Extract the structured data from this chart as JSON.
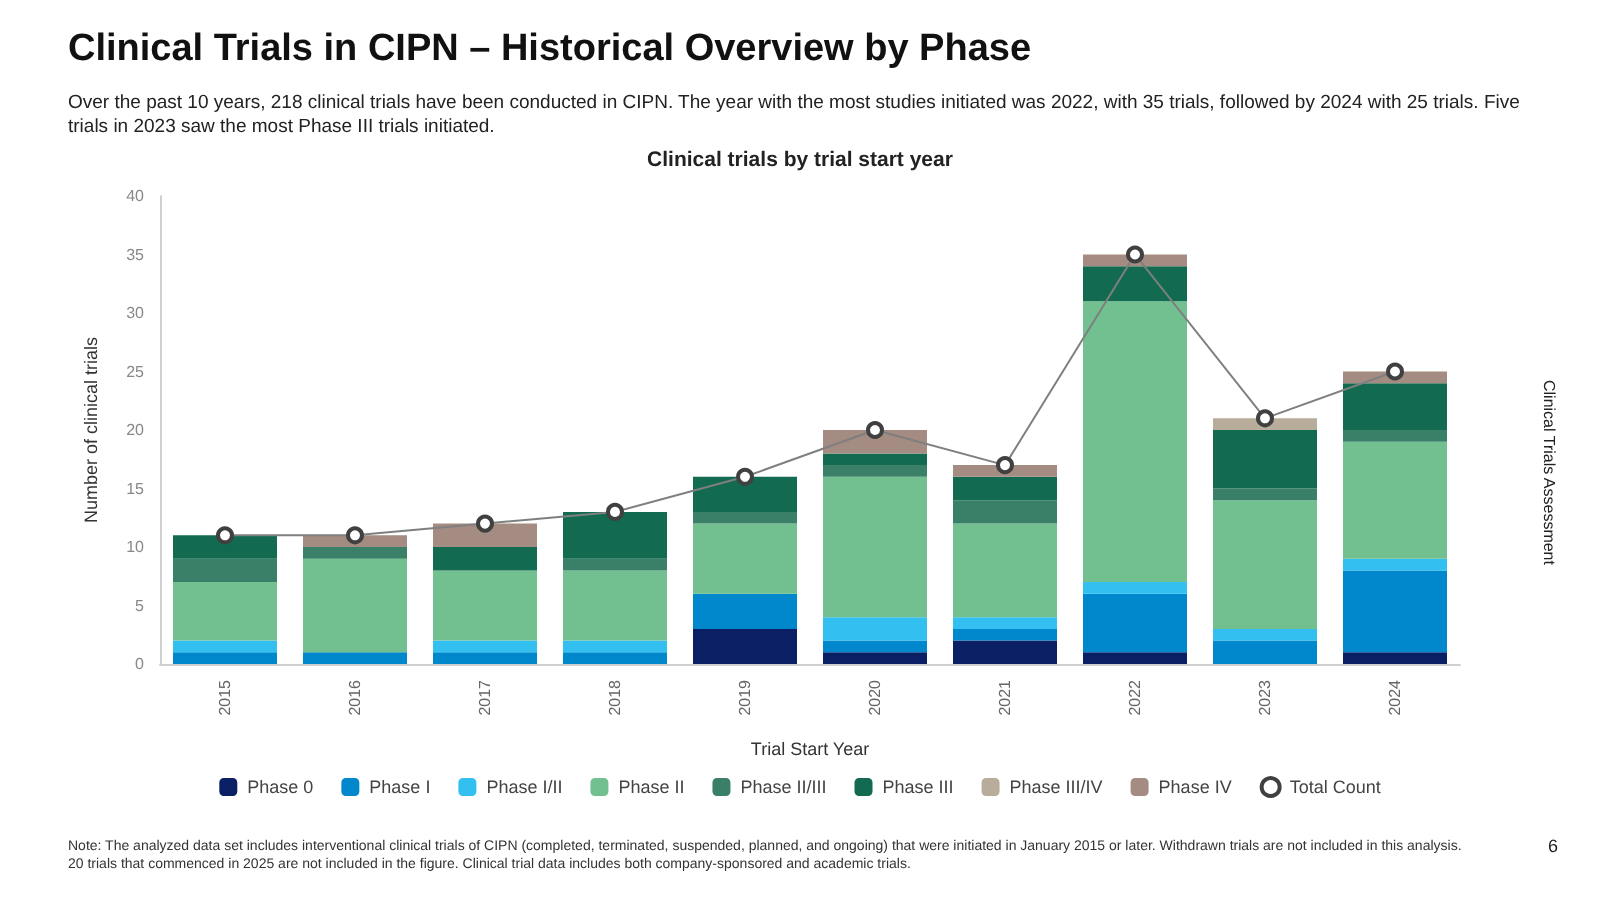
{
  "chart_data": {
    "type": "bar",
    "stacked": true,
    "title": "Clinical Trials in CIPN – Historical Overview by Phase",
    "subtitle": "Over the past 10 years, 218 clinical trials have been conducted in CIPN. The year with the most studies initiated was 2022, with 35 trials, followed by 2024 with 25 trials. Five trials in 2023 saw the most Phase III trials initiated.",
    "annotations": [
      "Clinical trials by trial start year",
      "Clinical Trials Assessment",
      "Note: The analyzed data set includes interventional clinical trials of CIPN (completed, terminated, suspended, planned, and ongoing) that were initiated in January 2015 or later. Withdrawn trials are not included in this analysis. 20 trials that commenced in 2025 are not included in the figure. Clinical trial data includes both company-sponsored and academic trials.",
      "6"
    ],
    "xlabel": "Trial Start Year",
    "ylabel": "Number of clinical trials",
    "categories": [
      "2015",
      "2016",
      "2017",
      "2018",
      "2019",
      "2020",
      "2021",
      "2022",
      "2023",
      "2024"
    ],
    "series": [
      {
        "name": "Phase 0",
        "color": "#0b1f65",
        "values": [
          0,
          0,
          0,
          0,
          3,
          1,
          2,
          1,
          0,
          1
        ]
      },
      {
        "name": "Phase I",
        "color": "#0087cc",
        "values": [
          1,
          1,
          1,
          1,
          3,
          1,
          1,
          5,
          2,
          7
        ]
      },
      {
        "name": "Phase I/II",
        "color": "#33bff0",
        "values": [
          1,
          0,
          1,
          1,
          0,
          2,
          1,
          1,
          1,
          1
        ]
      },
      {
        "name": "Phase II",
        "color": "#72c08f",
        "values": [
          5,
          8,
          6,
          6,
          6,
          12,
          8,
          24,
          11,
          10
        ]
      },
      {
        "name": "Phase II/III",
        "color": "#3a8068",
        "values": [
          2,
          1,
          0,
          1,
          1,
          1,
          2,
          0,
          1,
          1
        ]
      },
      {
        "name": "Phase III",
        "color": "#126b50",
        "values": [
          2,
          0,
          2,
          4,
          3,
          1,
          2,
          3,
          5,
          4
        ]
      },
      {
        "name": "Phase III/IV",
        "color": "#b8ad9a",
        "values": [
          0,
          0,
          0,
          0,
          0,
          0,
          0,
          0,
          1,
          0
        ]
      },
      {
        "name": "Phase IV",
        "color": "#a48c82",
        "values": [
          0,
          1,
          2,
          0,
          0,
          2,
          1,
          1,
          0,
          1
        ]
      },
      {
        "name": "Total Count",
        "type": "line",
        "color": "#7f7f7f",
        "values": [
          11,
          11,
          12,
          13,
          16,
          20,
          17,
          35,
          21,
          25
        ]
      }
    ],
    "marker": "circle",
    "ylim": [
      0,
      40
    ],
    "yticks": [
      0,
      5,
      10,
      15,
      20,
      25,
      30,
      35,
      40
    ],
    "grid": false,
    "legend": "bottom"
  }
}
